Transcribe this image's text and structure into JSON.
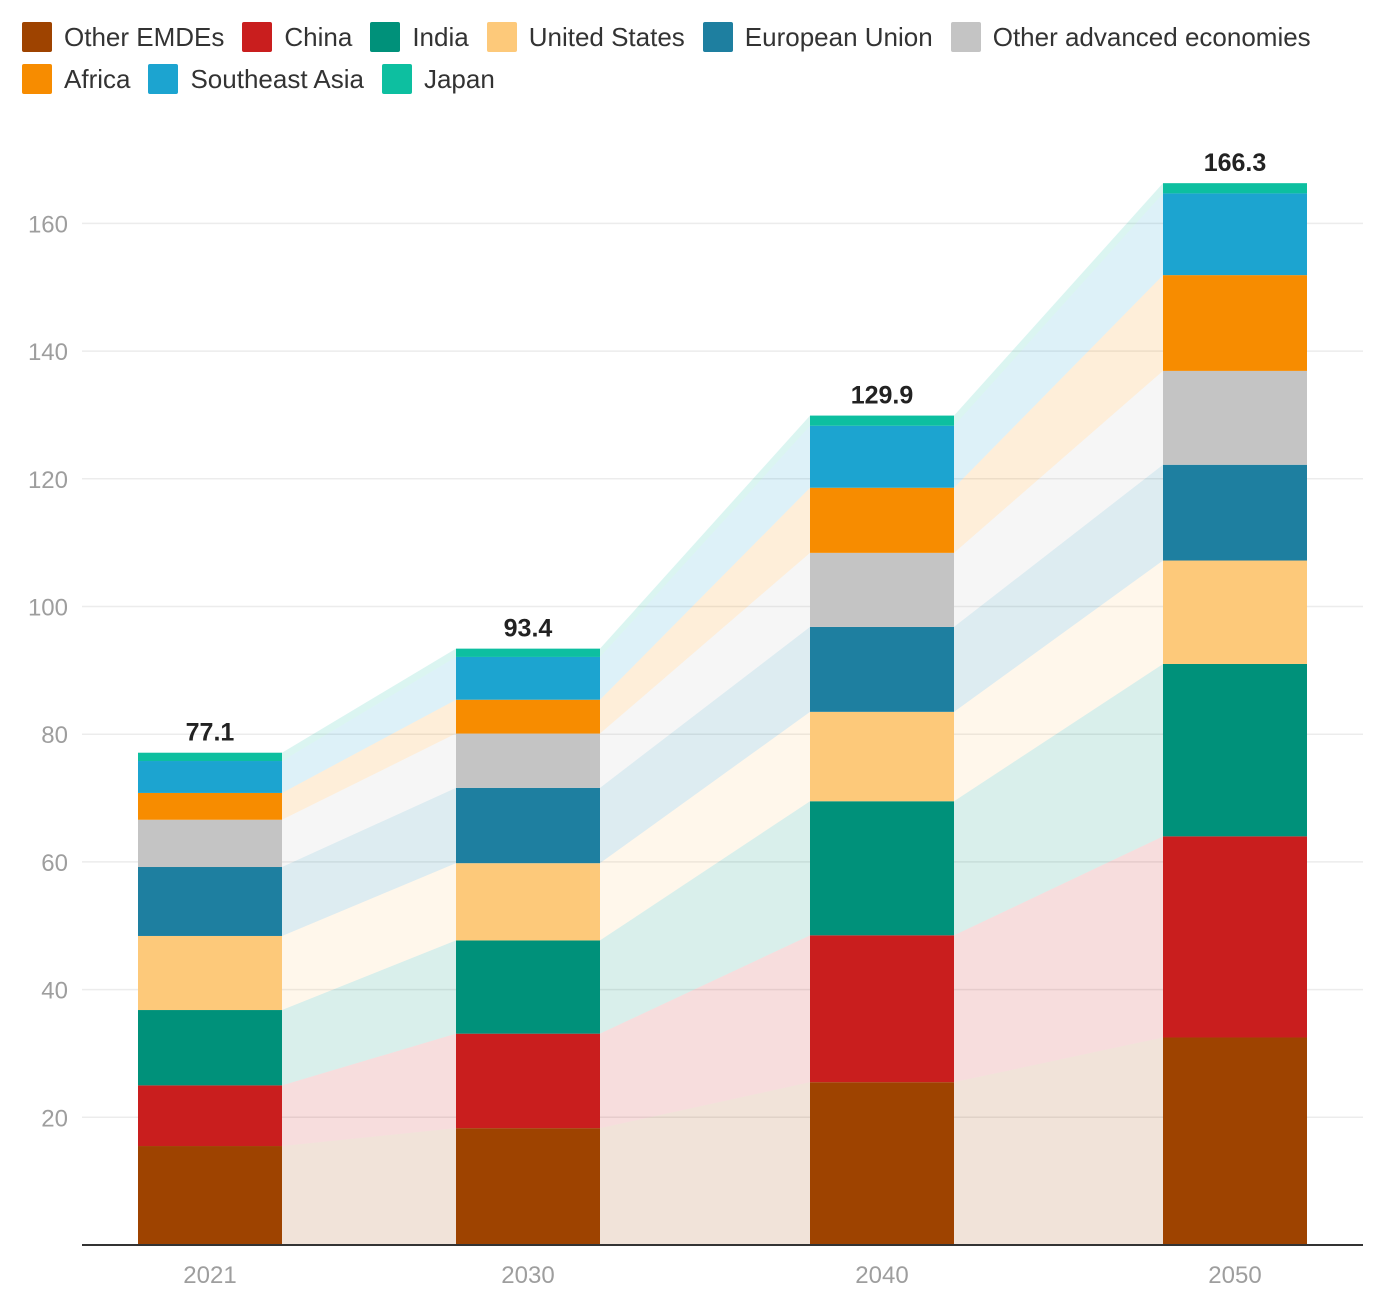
{
  "chart_data": {
    "type": "bar",
    "stacked": true,
    "categories": [
      "2021",
      "2030",
      "2040",
      "2050"
    ],
    "totals": [
      "77.1",
      "93.4",
      "129.9",
      "166.3"
    ],
    "ylim": [
      0,
      170
    ],
    "yticks": [
      20,
      40,
      60,
      80,
      100,
      120,
      140,
      160
    ],
    "grid": true,
    "legend_position": "top",
    "series": [
      {
        "name": "Other EMDEs",
        "color": "#9e4300",
        "values": [
          15.5,
          18.3,
          25.5,
          32.5
        ]
      },
      {
        "name": "China",
        "color": "#c91e1e",
        "values": [
          9.5,
          14.8,
          23.0,
          31.5
        ]
      },
      {
        "name": "India",
        "color": "#00917a",
        "values": [
          11.8,
          14.6,
          21.0,
          27.0
        ]
      },
      {
        "name": "United States",
        "color": "#fdc97a",
        "values": [
          11.6,
          12.1,
          14.0,
          16.2
        ]
      },
      {
        "name": "European Union",
        "color": "#1e7fa0",
        "values": [
          10.8,
          11.8,
          13.3,
          15.0
        ]
      },
      {
        "name": "Other advanced economies",
        "color": "#c4c4c4",
        "values": [
          7.4,
          8.5,
          11.6,
          14.7
        ]
      },
      {
        "name": "Africa",
        "color": "#f78c00",
        "values": [
          4.2,
          5.3,
          10.2,
          15.0
        ]
      },
      {
        "name": "Southeast Asia",
        "color": "#1ca4d0",
        "values": [
          5.0,
          6.7,
          9.7,
          12.8
        ]
      },
      {
        "name": "Japan",
        "color": "#0dbfa0",
        "values": [
          1.3,
          1.3,
          1.6,
          1.6
        ]
      }
    ]
  }
}
